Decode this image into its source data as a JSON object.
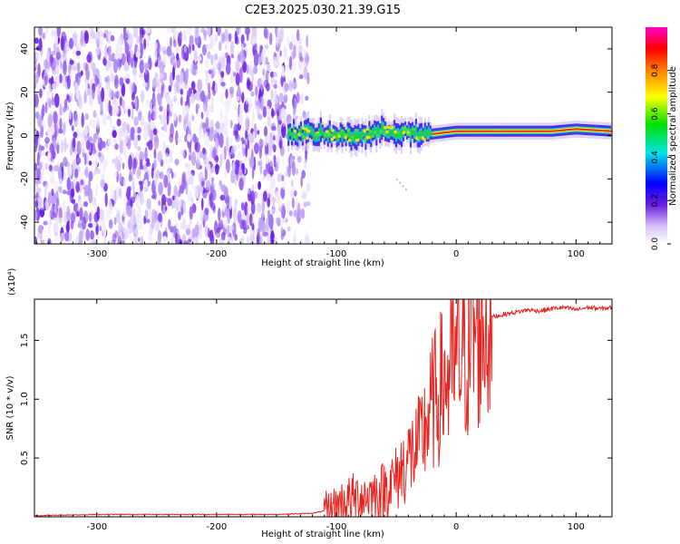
{
  "title": "C2E3.2025.030.21.39.G15",
  "colors": {
    "snr_line": "#e8231f",
    "noise_purple": "#6a1fe0",
    "axis": "#000000"
  },
  "chart_data": [
    {
      "type": "heatmap",
      "name": "spectrogram",
      "xlabel": "Height of straight line (km)",
      "ylabel": "Frequency (Hz)",
      "xlim": [
        -352,
        130
      ],
      "ylim": [
        -50,
        50
      ],
      "xticks": [
        -300,
        -200,
        -100,
        0,
        100
      ],
      "yticks": [
        -40,
        -20,
        0,
        20,
        40
      ],
      "colorbar": {
        "label": "Normalized spectral amplitude",
        "range": [
          0,
          1
        ],
        "ticks": [
          "0.0",
          "0.2",
          "0.4",
          "0.6",
          "0.8"
        ],
        "colormap": [
          "#ffffff",
          "#6a1fe0",
          "#0000ff",
          "#00e5e5",
          "#00e000",
          "#ffff00",
          "#ff8000",
          "#ff0000",
          "#ff00c8"
        ]
      },
      "features": {
        "noise_region_x": [
          -352,
          -140
        ],
        "sparse_noise_x": [
          -140,
          -123
        ],
        "signal_start_x": -140,
        "signal_center_hz": [
          [
            -140,
            1
          ],
          [
            -120,
            1
          ],
          [
            -100,
            0
          ],
          [
            -80,
            0
          ],
          [
            -60,
            2
          ],
          [
            -45,
            2
          ],
          [
            -30,
            0
          ],
          [
            -15,
            1
          ],
          [
            0,
            2
          ],
          [
            40,
            2
          ],
          [
            80,
            2
          ],
          [
            100,
            3
          ],
          [
            130,
            2
          ]
        ],
        "chirp_trace": [
          [
            -50,
            -20
          ],
          [
            -40,
            -26
          ]
        ]
      }
    },
    {
      "type": "line",
      "name": "snr",
      "xlabel": "Height of straight line (km)",
      "ylabel": "SNR (10 * v/v)",
      "y_multiplier": "(x10⁴)",
      "xlim": [
        -352,
        130
      ],
      "ylim": [
        0,
        1.85
      ],
      "xticks": [
        -300,
        -200,
        -100,
        0,
        100
      ],
      "yticks": [
        0.5,
        1.0,
        1.5
      ],
      "ytick_labels": [
        "0.5",
        "1.0",
        "1.5"
      ],
      "series": [
        {
          "x": [
            -352,
            -300,
            -250,
            -200,
            -150,
            -120,
            -105,
            -95,
            -85,
            -75,
            -65,
            -55,
            -50,
            -45,
            -40,
            -35,
            -30,
            -25,
            -20,
            -15,
            -10,
            -5,
            0,
            5,
            10,
            15,
            20,
            25,
            30,
            40,
            50,
            60,
            70,
            80,
            90,
            100,
            110,
            120,
            130
          ],
          "y": [
            0.01,
            0.02,
            0.02,
            0.02,
            0.02,
            0.03,
            0.06,
            0.12,
            0.16,
            0.18,
            0.2,
            0.28,
            0.32,
            0.42,
            0.5,
            0.55,
            0.62,
            0.8,
            0.95,
            1.05,
            1.15,
            1.2,
            1.3,
            1.35,
            1.42,
            1.55,
            1.6,
            1.65,
            1.7,
            1.72,
            1.74,
            1.76,
            1.75,
            1.77,
            1.78,
            1.76,
            1.78,
            1.77,
            1.78
          ]
        }
      ]
    }
  ]
}
